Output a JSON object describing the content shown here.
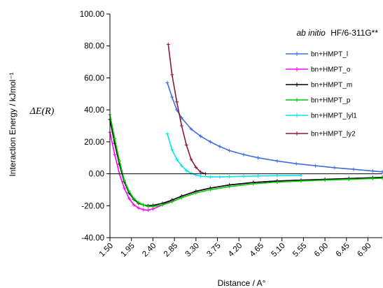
{
  "chart_data": {
    "type": "line",
    "title": "",
    "annotation_prefix": "ab initio",
    "annotation_method": "HF/6-311G**",
    "ylabel": "Interaction Energy / kJmol⁻¹",
    "ylabel_symbol": "ΔE(R)",
    "xlabel": "Distance / A°",
    "xlim": [
      1.5,
      7.2
    ],
    "ylim": [
      -40,
      100
    ],
    "y_ticks": [
      "-40.00",
      "-20.00",
      "0.00",
      "20.00",
      "40.00",
      "60.00",
      "80.00",
      "100.00"
    ],
    "y_tick_values": [
      -40,
      -20,
      0,
      20,
      40,
      60,
      80,
      100
    ],
    "x_ticks": [
      "1.50",
      "1.95",
      "2.40",
      "2.85",
      "3.30",
      "3.75",
      "4.20",
      "4.65",
      "5.10",
      "5.55",
      "6.00",
      "6.45",
      "6.90"
    ],
    "x_tick_values": [
      1.5,
      1.95,
      2.4,
      2.85,
      3.3,
      3.75,
      4.2,
      4.65,
      5.1,
      5.55,
      6.0,
      6.45,
      6.9
    ],
    "grid": false,
    "legend_position": "top-right",
    "series": [
      {
        "name": "bn+HMPT_l",
        "color": "#4169E1",
        "x": [
          2.7,
          2.8,
          2.9,
          3.0,
          3.2,
          3.4,
          3.6,
          3.8,
          4.0,
          4.3,
          4.6,
          5.0,
          5.4,
          5.8,
          6.2,
          6.6,
          7.0,
          7.2
        ],
        "y": [
          57,
          48,
          40,
          35,
          28,
          23.5,
          20,
          17,
          14.5,
          12,
          10,
          8,
          6.3,
          5,
          3.8,
          2.8,
          1.7,
          1.2
        ]
      },
      {
        "name": "bn+HMPT_o",
        "color": "#FF00FF",
        "x": [
          1.5,
          1.6,
          1.7,
          1.8,
          1.9,
          2.0,
          2.1,
          2.2,
          2.3,
          2.4,
          2.6,
          2.8,
          3.0,
          3.3,
          3.6,
          4.0,
          4.5,
          5.0,
          5.5,
          6.0,
          6.5,
          7.0,
          7.2
        ],
        "y": [
          26,
          12,
          0,
          -9,
          -15.5,
          -19.5,
          -21.5,
          -22.5,
          -22.8,
          -22,
          -19.5,
          -16.5,
          -14,
          -11,
          -9,
          -7,
          -5.5,
          -4.5,
          -4,
          -3.5,
          -3,
          -2.5,
          -2.3
        ]
      },
      {
        "name": "bn+HMPT_m",
        "color": "#000000",
        "x": [
          1.5,
          1.6,
          1.7,
          1.8,
          1.9,
          2.0,
          2.1,
          2.2,
          2.3,
          2.4,
          2.6,
          2.8,
          3.0,
          3.3,
          3.6,
          4.0,
          4.5,
          5.0,
          5.5,
          6.0,
          6.5,
          7.0,
          7.2
        ],
        "y": [
          34,
          19,
          6,
          -5,
          -12,
          -16,
          -18.5,
          -19.5,
          -20,
          -19.8,
          -18.5,
          -16.5,
          -14,
          -11,
          -9,
          -7,
          -5.5,
          -4.5,
          -4,
          -3.5,
          -3,
          -2.5,
          -2.3
        ]
      },
      {
        "name": "bn+HMPT_p",
        "color": "#00CC00",
        "x": [
          1.5,
          1.6,
          1.7,
          1.8,
          1.9,
          2.0,
          2.1,
          2.2,
          2.3,
          2.4,
          2.6,
          2.8,
          3.0,
          3.3,
          3.6,
          4.0,
          4.5,
          5.0,
          5.5,
          6.0,
          6.5,
          7.0,
          7.2
        ],
        "y": [
          37,
          22,
          8,
          -4,
          -11,
          -15.5,
          -18,
          -19.5,
          -20.5,
          -20.5,
          -19.5,
          -17.5,
          -15,
          -12,
          -10,
          -8,
          -6.3,
          -5.2,
          -4.5,
          -4,
          -3.5,
          -3,
          -2.8
        ]
      },
      {
        "name": "bn+HMPT_lyl1",
        "color": "#00E5EE",
        "x": [
          2.7,
          2.8,
          2.9,
          3.0,
          3.1,
          3.2,
          3.3,
          3.4,
          3.6,
          3.8,
          4.0,
          4.3,
          4.6,
          5.0,
          5.5
        ],
        "y": [
          25,
          15,
          9,
          5,
          2,
          0.3,
          -0.8,
          -1.5,
          -2,
          -2,
          -1.8,
          -1.6,
          -1.4,
          -1.2,
          -1
        ]
      },
      {
        "name": "bn+HMPT_ly2",
        "color": "#8B1A3A",
        "x": [
          2.72,
          2.8,
          2.9,
          3.0,
          3.1,
          3.2,
          3.3,
          3.4,
          3.5
        ],
        "y": [
          81,
          62,
          45,
          30,
          18,
          9,
          4,
          1,
          0
        ]
      }
    ]
  }
}
